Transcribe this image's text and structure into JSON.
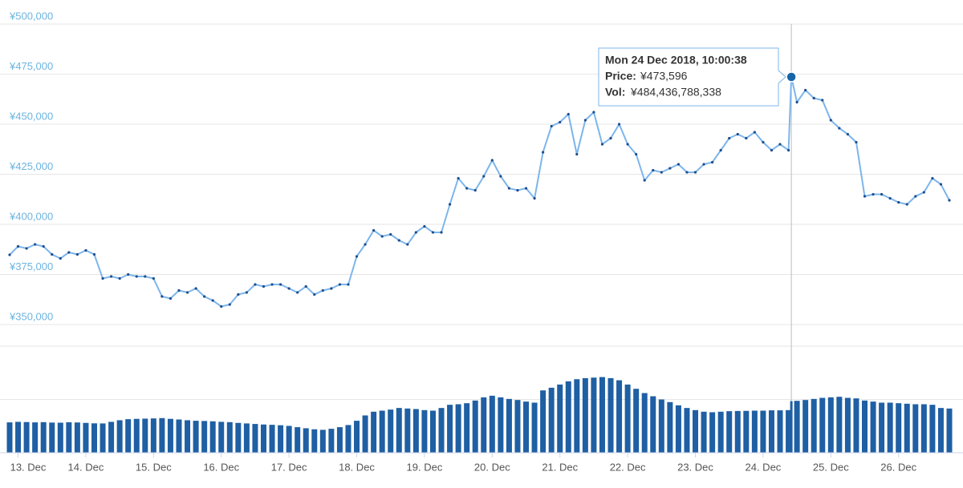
{
  "chart_data": {
    "type": "line",
    "x": [
      12.875,
      13,
      13.125,
      13.25,
      13.375,
      13.5,
      13.625,
      13.75,
      13.875,
      14,
      14.125,
      14.25,
      14.375,
      14.5,
      14.625,
      14.75,
      14.875,
      15,
      15.125,
      15.25,
      15.375,
      15.5,
      15.625,
      15.75,
      15.875,
      16,
      16.125,
      16.25,
      16.375,
      16.5,
      16.625,
      16.75,
      16.875,
      17,
      17.125,
      17.25,
      17.375,
      17.5,
      17.625,
      17.75,
      17.875,
      18,
      18.125,
      18.25,
      18.375,
      18.5,
      18.625,
      18.75,
      18.875,
      19,
      19.125,
      19.25,
      19.375,
      19.5,
      19.625,
      19.75,
      19.875,
      20,
      20.125,
      20.25,
      20.375,
      20.5,
      20.625,
      20.75,
      20.875,
      21,
      21.125,
      21.25,
      21.375,
      21.5,
      21.625,
      21.75,
      21.875,
      22,
      22.125,
      22.25,
      22.375,
      22.5,
      22.625,
      22.75,
      22.875,
      23,
      23.125,
      23.25,
      23.375,
      23.5,
      23.625,
      23.75,
      23.875,
      24,
      24.125,
      24.25,
      24.375,
      24.417,
      24.5,
      24.625,
      24.75,
      24.875,
      25,
      25.125,
      25.25,
      25.375,
      25.5,
      25.625,
      25.75,
      25.875,
      26,
      26.125,
      26.25,
      26.375,
      26.5,
      26.625,
      26.75
    ],
    "xlim": [
      12.875,
      26.75
    ],
    "xticks": [
      {
        "value": 13,
        "label": "13. Dec"
      },
      {
        "value": 14,
        "label": "14. Dec"
      },
      {
        "value": 15,
        "label": "15. Dec"
      },
      {
        "value": 16,
        "label": "16. Dec"
      },
      {
        "value": 17,
        "label": "17. Dec"
      },
      {
        "value": 18,
        "label": "18. Dec"
      },
      {
        "value": 19,
        "label": "19. Dec"
      },
      {
        "value": 20,
        "label": "20. Dec"
      },
      {
        "value": 21,
        "label": "21. Dec"
      },
      {
        "value": 22,
        "label": "22. Dec"
      },
      {
        "value": 23,
        "label": "23. Dec"
      },
      {
        "value": 24,
        "label": "24. Dec"
      },
      {
        "value": 25,
        "label": "25. Dec"
      },
      {
        "value": 26,
        "label": "26. Dec"
      }
    ],
    "ylim": [
      350000,
      500000
    ],
    "yticks": [
      {
        "value": 350000,
        "label": "¥350,000"
      },
      {
        "value": 375000,
        "label": "¥375,000"
      },
      {
        "value": 400000,
        "label": "¥400,000"
      },
      {
        "value": 425000,
        "label": "¥425,000"
      },
      {
        "value": 450000,
        "label": "¥450,000"
      },
      {
        "value": 475000,
        "label": "¥475,000"
      },
      {
        "value": 500000,
        "label": "¥500,000"
      }
    ],
    "y2lim": [
      0,
      1000000000000
    ],
    "y2ticks": [
      0,
      500000000000,
      1000000000000
    ],
    "y2tick_labels": false,
    "grid": true,
    "series": [
      {
        "type": "line",
        "color": "#7cb5ec",
        "marker_color": "#1f4e8c",
        "values": [
          384800,
          389000,
          388000,
          390000,
          389000,
          385000,
          383000,
          386000,
          385000,
          387000,
          385000,
          373000,
          374000,
          373000,
          375000,
          374000,
          374000,
          373000,
          364000,
          363000,
          367000,
          366000,
          368000,
          364000,
          362000,
          359000,
          360000,
          365000,
          366000,
          370000,
          369000,
          370000,
          370000,
          368000,
          366000,
          369000,
          365000,
          367000,
          368000,
          370000,
          370000,
          384000,
          390000,
          397000,
          394000,
          395000,
          392000,
          390000,
          396000,
          399000,
          396000,
          396000,
          410000,
          423000,
          418000,
          417000,
          424000,
          432000,
          424000,
          418000,
          417000,
          418000,
          413000,
          436000,
          449000,
          451000,
          455000,
          435000,
          452000,
          456000,
          440000,
          443000,
          450000,
          440000,
          435000,
          422000,
          427000,
          426000,
          428000,
          430000,
          426000,
          426000,
          430000,
          431000,
          437000,
          443000,
          445000,
          443000,
          446000,
          441000,
          437000,
          440000,
          437000,
          473596,
          461000,
          467000,
          463000,
          462000,
          452000,
          448000,
          445000,
          441000,
          414000,
          415000,
          415000,
          413000,
          411000,
          410000,
          414000,
          416000,
          423000,
          420000,
          412000
        ]
      },
      {
        "type": "bar",
        "axis": "y2",
        "color": "#1f5fa3",
        "values": [
          285000000000.0,
          290000000000.0,
          288000000000.0,
          285000000000.0,
          287000000000.0,
          283000000000.0,
          282000000000.0,
          286000000000.0,
          284000000000.0,
          280000000000.0,
          276000000000.0,
          275000000000.0,
          290000000000.0,
          305000000000.0,
          315000000000.0,
          318000000000.0,
          320000000000.0,
          322000000000.0,
          325000000000.0,
          318000000000.0,
          312000000000.0,
          305000000000.0,
          300000000000.0,
          298000000000.0,
          295000000000.0,
          290000000000.0,
          287000000000.0,
          280000000000.0,
          275000000000.0,
          270000000000.0,
          265000000000.0,
          262000000000.0,
          258000000000.0,
          252000000000.0,
          240000000000.0,
          230000000000.0,
          220000000000.0,
          215000000000.0,
          225000000000.0,
          240000000000.0,
          260000000000.0,
          300000000000.0,
          350000000000.0,
          385000000000.0,
          395000000000.0,
          405000000000.0,
          420000000000.0,
          415000000000.0,
          410000000000.0,
          400000000000.0,
          395000000000.0,
          420000000000.0,
          450000000000.0,
          455000000000.0,
          465000000000.0,
          490000000000.0,
          520000000000.0,
          535000000000.0,
          520000000000.0,
          505000000000.0,
          495000000000.0,
          480000000000.0,
          470000000000.0,
          585000000000.0,
          610000000000.0,
          640000000000.0,
          670000000000.0,
          690000000000.0,
          700000000000.0,
          705000000000.0,
          710000000000.0,
          700000000000.0,
          680000000000.0,
          640000000000.0,
          600000000000.0,
          560000000000.0,
          530000000000.0,
          500000000000.0,
          475000000000.0,
          445000000000.0,
          420000000000.0,
          400000000000.0,
          385000000000.0,
          380000000000.0,
          385000000000.0,
          390000000000.0,
          392000000000.0,
          393000000000.0,
          395000000000.0,
          395000000000.0,
          398000000000.0,
          398000000000.0,
          400000000000.0,
          484436788338,
          487000000000.0,
          495000000000.0,
          505000000000.0,
          515000000000.0,
          520000000000.0,
          525000000000.0,
          515000000000.0,
          510000000000.0,
          490000000000.0,
          480000000000.0,
          470000000000.0,
          470000000000.0,
          465000000000.0,
          460000000000.0,
          455000000000.0,
          455000000000.0,
          450000000000.0,
          420000000000.0,
          415000000000.0
        ]
      }
    ],
    "tooltip": {
      "x": 24.417,
      "title": "Mon 24 Dec 2018, 10:00:38",
      "price_label": "Price:",
      "price_text": "¥473,596",
      "vol_label": "Vol:",
      "vol_text": "¥484,436,788,338"
    }
  }
}
